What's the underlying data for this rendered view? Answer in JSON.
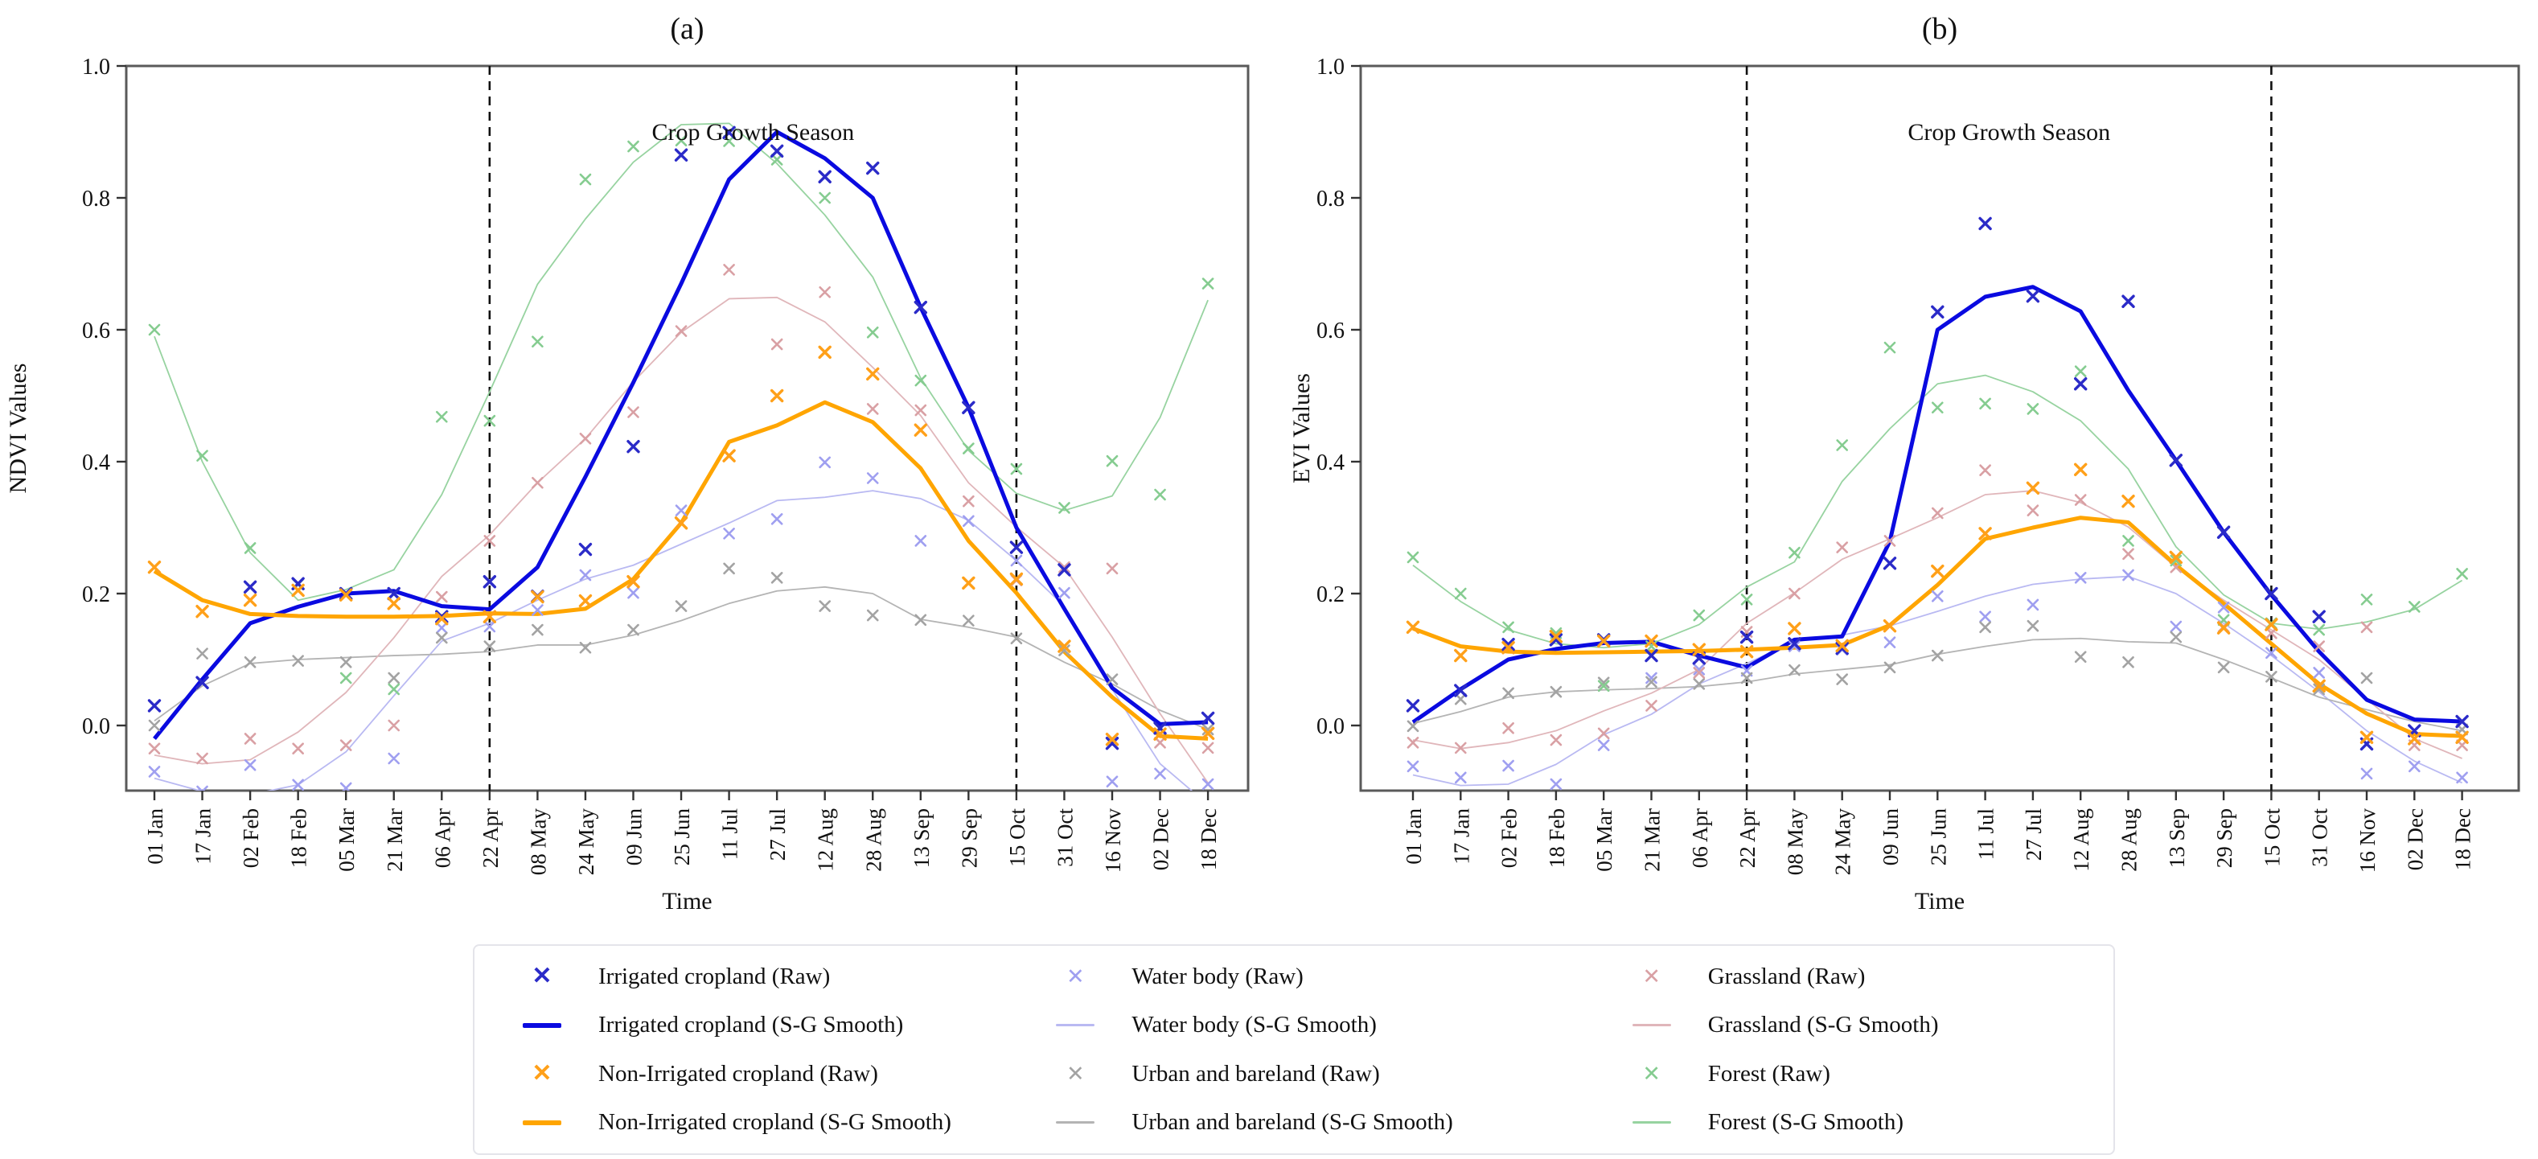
{
  "figure": {
    "background": "#ffffff",
    "season_label": "Crop Growth Season",
    "time_label": "Time"
  },
  "legend": {
    "items": [
      {
        "label": "Irrigated cropland (Raw)",
        "glyph": "x",
        "bold": true,
        "color": "#2b2bc8"
      },
      {
        "label": "Irrigated cropland (S-G Smooth)",
        "glyph": "line",
        "bold": true,
        "color": "#0a0ae0"
      },
      {
        "label": "Non-Irrigated cropland (Raw)",
        "glyph": "x",
        "bold": true,
        "color": "#ffa019"
      },
      {
        "label": "Non-Irrigated cropland (S-G Smooth)",
        "glyph": "line",
        "bold": true,
        "color": "#ffa500"
      },
      {
        "label": "Water body (Raw)",
        "glyph": "x",
        "bold": false,
        "color": "#9f9ff0"
      },
      {
        "label": "Water body (S-G Smooth)",
        "glyph": "line",
        "bold": false,
        "color": "#b9b9f2"
      },
      {
        "label": "Urban and bareland (Raw)",
        "glyph": "x",
        "bold": false,
        "color": "#a3a3a3"
      },
      {
        "label": "Urban and bareland (S-G Smooth)",
        "glyph": "line",
        "bold": false,
        "color": "#b4b4b4"
      },
      {
        "label": "Grassland (Raw)",
        "glyph": "x",
        "bold": false,
        "color": "#d9a0a4"
      },
      {
        "label": "Grassland (S-G Smooth)",
        "glyph": "line",
        "bold": false,
        "color": "#e0b6ba"
      },
      {
        "label": "Forest (Raw)",
        "glyph": "x",
        "bold": false,
        "color": "#85cc90"
      },
      {
        "label": "Forest (S-G Smooth)",
        "glyph": "line",
        "bold": false,
        "color": "#97d3a0"
      }
    ]
  },
  "chart_data": [
    {
      "id": "a",
      "type": "line",
      "title": "(a)",
      "ylabel": "NDVI Values",
      "xlabel": "Time",
      "annotation": "Crop Growth Season",
      "ylim": [
        -0.1,
        1.0
      ],
      "yticks": [
        "0.0",
        "0.2",
        "0.4",
        "0.6",
        "0.8",
        "1.0"
      ],
      "grid": false,
      "season_ticks": [
        "22 Apr",
        "15 Oct"
      ],
      "categories": [
        "01 Jan",
        "17 Jan",
        "02 Feb",
        "18 Feb",
        "05 Mar",
        "21 Mar",
        "06 Apr",
        "22 Apr",
        "08 May",
        "24 May",
        "09 Jun",
        "25 Jun",
        "11 Jul",
        "27 Jul",
        "12 Aug",
        "28 Aug",
        "13 Sep",
        "29 Sep",
        "15 Oct",
        "31 Oct",
        "16 Nov",
        "02 Dec",
        "18 Dec"
      ],
      "series": [
        {
          "name": "Irrigated cropland (Raw)",
          "kind": "raw",
          "emph": true,
          "color": "#2b2bc8",
          "values": [
            0.03,
            0.065,
            0.21,
            0.215,
            0.2,
            0.2,
            0.165,
            0.218,
            0.196,
            0.267,
            0.423,
            0.865,
            0.899,
            0.871,
            0.832,
            0.845,
            0.634,
            0.482,
            0.27,
            0.236,
            -0.027,
            -0.004,
            0.011
          ]
        },
        {
          "name": "Irrigated cropland (S-G Smooth)",
          "kind": "smooth",
          "emph": true,
          "color": "#0a0ae0",
          "values": [
            -0.02,
            0.07,
            0.155,
            0.18,
            0.2,
            0.204,
            0.181,
            0.176,
            0.24,
            0.377,
            0.52,
            0.67,
            0.828,
            0.9,
            0.86,
            0.8,
            0.634,
            0.482,
            0.3,
            0.177,
            0.057,
            0.002,
            0.005
          ]
        },
        {
          "name": "Non-Irrigated cropland (Raw)",
          "kind": "raw",
          "emph": true,
          "color": "#ffa019",
          "values": [
            0.24,
            0.173,
            0.19,
            0.205,
            0.198,
            0.185,
            0.162,
            0.165,
            0.195,
            0.189,
            0.218,
            0.307,
            0.409,
            0.5,
            0.566,
            0.533,
            0.448,
            0.216,
            0.222,
            0.12,
            -0.021,
            -0.013,
            -0.012
          ]
        },
        {
          "name": "Non-Irrigated cropland (S-G Smooth)",
          "kind": "smooth",
          "emph": true,
          "color": "#ffa500",
          "values": [
            0.234,
            0.19,
            0.169,
            0.166,
            0.165,
            0.165,
            0.166,
            0.17,
            0.169,
            0.177,
            0.222,
            0.307,
            0.43,
            0.455,
            0.49,
            0.46,
            0.39,
            0.28,
            0.201,
            0.112,
            0.043,
            -0.016,
            -0.02
          ]
        },
        {
          "name": "Water body (Raw)",
          "kind": "raw",
          "emph": false,
          "color": "#9f9ff0",
          "values": [
            -0.07,
            -0.1,
            -0.06,
            -0.09,
            -0.095,
            -0.05,
            0.148,
            0.15,
            0.175,
            0.228,
            0.201,
            0.326,
            0.291,
            0.313,
            0.399,
            0.375,
            0.28,
            0.31,
            0.25,
            0.201,
            -0.085,
            -0.073,
            -0.089
          ]
        },
        {
          "name": "Water body (S-G Smooth)",
          "kind": "smooth",
          "emph": false,
          "color": "#b9b9f2",
          "values": [
            -0.08,
            -0.1,
            -0.105,
            -0.09,
            -0.04,
            0.045,
            0.128,
            0.155,
            0.19,
            0.222,
            0.243,
            0.275,
            0.307,
            0.341,
            0.346,
            0.356,
            0.344,
            0.311,
            0.25,
            0.181,
            0.055,
            -0.058,
            -0.12
          ]
        },
        {
          "name": "Urban and bareland (Raw)",
          "kind": "raw",
          "emph": false,
          "color": "#a3a3a3",
          "values": [
            0.0,
            0.109,
            0.096,
            0.098,
            0.096,
            0.072,
            0.133,
            0.12,
            0.145,
            0.118,
            0.145,
            0.181,
            0.238,
            0.224,
            0.181,
            0.167,
            0.16,
            0.159,
            0.132,
            0.114,
            0.07,
            -0.005,
            -0.006
          ]
        },
        {
          "name": "Urban and bareland (S-G Smooth)",
          "kind": "smooth",
          "emph": false,
          "color": "#b4b4b4",
          "values": [
            0.007,
            0.06,
            0.094,
            0.1,
            0.103,
            0.106,
            0.108,
            0.112,
            0.122,
            0.122,
            0.137,
            0.159,
            0.185,
            0.204,
            0.21,
            0.2,
            0.161,
            0.149,
            0.134,
            0.096,
            0.063,
            0.023,
            -0.006
          ]
        },
        {
          "name": "Grassland (Raw)",
          "kind": "raw",
          "emph": false,
          "color": "#d9a0a4",
          "values": [
            -0.035,
            -0.05,
            -0.02,
            -0.035,
            -0.03,
            0.0,
            0.195,
            0.28,
            0.368,
            0.435,
            0.475,
            0.598,
            0.691,
            0.578,
            0.657,
            0.48,
            0.478,
            0.34,
            0.22,
            0.24,
            0.238,
            -0.026,
            -0.034
          ]
        },
        {
          "name": "Grassland (S-G Smooth)",
          "kind": "smooth",
          "emph": false,
          "color": "#e0b6ba",
          "values": [
            -0.045,
            -0.058,
            -0.052,
            -0.01,
            0.05,
            0.133,
            0.226,
            0.289,
            0.368,
            0.435,
            0.521,
            0.596,
            0.647,
            0.649,
            0.612,
            0.543,
            0.47,
            0.368,
            0.301,
            0.24,
            0.134,
            0.018,
            -0.087
          ]
        },
        {
          "name": "Forest (Raw)",
          "kind": "raw",
          "emph": false,
          "color": "#85cc90",
          "values": [
            0.6,
            0.409,
            0.269,
            0.214,
            0.072,
            0.055,
            0.468,
            0.462,
            0.582,
            0.828,
            0.878,
            0.887,
            0.886,
            0.858,
            0.8,
            0.596,
            0.523,
            0.42,
            0.389,
            0.33,
            0.401,
            0.35,
            0.67
          ]
        },
        {
          "name": "Forest (S-G Smooth)",
          "kind": "smooth",
          "emph": false,
          "color": "#97d3a0",
          "values": [
            0.59,
            0.4,
            0.262,
            0.19,
            0.206,
            0.236,
            0.35,
            0.506,
            0.669,
            0.768,
            0.854,
            0.911,
            0.913,
            0.852,
            0.774,
            0.68,
            0.527,
            0.417,
            0.352,
            0.326,
            0.348,
            0.467,
            0.645
          ]
        }
      ]
    },
    {
      "id": "b",
      "type": "line",
      "title": "(b)",
      "ylabel": "EVI Values",
      "xlabel": "Time",
      "annotation": "Crop Growth Season",
      "ylim": [
        -0.1,
        1.0
      ],
      "yticks": [
        "0.0",
        "0.2",
        "0.4",
        "0.6",
        "0.8",
        "1.0"
      ],
      "grid": false,
      "season_ticks": [
        "22 Apr",
        "15 Oct"
      ],
      "categories": [
        "01 Jan",
        "17 Jan",
        "02 Feb",
        "18 Feb",
        "05 Mar",
        "21 Mar",
        "06 Apr",
        "22 Apr",
        "08 May",
        "24 May",
        "09 Jun",
        "25 Jun",
        "11 Jul",
        "27 Jul",
        "12 Aug",
        "28 Aug",
        "13 Sep",
        "29 Sep",
        "15 Oct",
        "31 Oct",
        "16 Nov",
        "02 Dec",
        "18 Dec"
      ],
      "series": [
        {
          "name": "Irrigated cropland (Raw)",
          "kind": "raw",
          "emph": true,
          "color": "#2b2bc8",
          "values": [
            0.03,
            0.053,
            0.123,
            0.13,
            0.13,
            0.106,
            0.102,
            0.134,
            0.124,
            0.117,
            0.246,
            0.627,
            0.761,
            0.651,
            0.518,
            0.643,
            0.402,
            0.293,
            0.2,
            0.165,
            -0.028,
            -0.008,
            0.006
          ]
        },
        {
          "name": "Irrigated cropland (S-G Smooth)",
          "kind": "smooth",
          "emph": true,
          "color": "#0a0ae0",
          "values": [
            0.005,
            0.055,
            0.1,
            0.116,
            0.125,
            0.127,
            0.106,
            0.088,
            0.13,
            0.135,
            0.279,
            0.6,
            0.65,
            0.665,
            0.628,
            0.508,
            0.402,
            0.293,
            0.198,
            0.112,
            0.039,
            0.009,
            0.006
          ]
        },
        {
          "name": "Non-Irrigated cropland (Raw)",
          "kind": "raw",
          "emph": true,
          "color": "#ffa019",
          "values": [
            0.149,
            0.106,
            0.118,
            0.135,
            0.128,
            0.128,
            0.115,
            0.112,
            0.147,
            0.121,
            0.151,
            0.234,
            0.291,
            0.36,
            0.388,
            0.34,
            0.255,
            0.148,
            0.153,
            0.06,
            -0.018,
            -0.02,
            -0.018
          ]
        },
        {
          "name": "Non-Irrigated cropland (S-G Smooth)",
          "kind": "smooth",
          "emph": true,
          "color": "#ffa500",
          "values": [
            0.147,
            0.12,
            0.112,
            0.11,
            0.111,
            0.112,
            0.113,
            0.115,
            0.118,
            0.122,
            0.152,
            0.213,
            0.283,
            0.3,
            0.315,
            0.308,
            0.243,
            0.185,
            0.124,
            0.063,
            0.018,
            -0.013,
            -0.016
          ]
        },
        {
          "name": "Water body (Raw)",
          "kind": "raw",
          "emph": false,
          "color": "#9f9ff0",
          "values": [
            -0.062,
            -0.079,
            -0.061,
            -0.089,
            -0.03,
            0.072,
            0.085,
            0.083,
            0.12,
            0.115,
            0.126,
            0.196,
            0.165,
            0.183,
            0.224,
            0.228,
            0.15,
            0.179,
            0.11,
            0.08,
            -0.073,
            -0.062,
            -0.079
          ]
        },
        {
          "name": "Water body (S-G Smooth)",
          "kind": "smooth",
          "emph": false,
          "color": "#b9b9f2",
          "values": [
            -0.075,
            -0.091,
            -0.089,
            -0.059,
            -0.014,
            0.017,
            0.063,
            0.094,
            0.127,
            0.137,
            0.151,
            0.173,
            0.196,
            0.214,
            0.222,
            0.226,
            0.2,
            0.155,
            0.106,
            0.051,
            -0.008,
            -0.054,
            -0.087
          ]
        },
        {
          "name": "Urban and bareland (Raw)",
          "kind": "raw",
          "emph": false,
          "color": "#a3a3a3",
          "values": [
            -0.001,
            0.04,
            0.049,
            0.051,
            0.065,
            0.066,
            0.063,
            0.072,
            0.084,
            0.07,
            0.088,
            0.106,
            0.149,
            0.151,
            0.104,
            0.096,
            0.134,
            0.088,
            0.074,
            0.055,
            0.072,
            -0.008,
            -0.006
          ]
        },
        {
          "name": "Urban and bareland (S-G Smooth)",
          "kind": "smooth",
          "emph": false,
          "color": "#b4b4b4",
          "values": [
            0.003,
            0.021,
            0.043,
            0.051,
            0.054,
            0.056,
            0.059,
            0.066,
            0.078,
            0.085,
            0.092,
            0.108,
            0.12,
            0.13,
            0.132,
            0.127,
            0.125,
            0.1,
            0.072,
            0.043,
            0.024,
            0.006,
            -0.008
          ]
        },
        {
          "name": "Grassland (Raw)",
          "kind": "raw",
          "emph": false,
          "color": "#d9a0a4",
          "values": [
            -0.026,
            -0.034,
            -0.004,
            -0.022,
            -0.012,
            0.03,
            0.08,
            0.142,
            0.2,
            0.27,
            0.28,
            0.322,
            0.387,
            0.326,
            0.342,
            0.26,
            0.24,
            0.15,
            0.14,
            0.12,
            0.149,
            -0.03,
            -0.03
          ]
        },
        {
          "name": "Grassland (S-G Smooth)",
          "kind": "smooth",
          "emph": false,
          "color": "#e0b6ba",
          "values": [
            -0.022,
            -0.035,
            -0.026,
            -0.008,
            0.022,
            0.049,
            0.085,
            0.155,
            0.201,
            0.252,
            0.283,
            0.315,
            0.35,
            0.356,
            0.338,
            0.301,
            0.24,
            0.19,
            0.145,
            0.1,
            0.04,
            -0.02,
            -0.05
          ]
        },
        {
          "name": "Forest (Raw)",
          "kind": "raw",
          "emph": false,
          "color": "#85cc90",
          "values": [
            0.255,
            0.2,
            0.149,
            0.14,
            0.06,
            0.12,
            0.167,
            0.191,
            0.262,
            0.425,
            0.573,
            0.482,
            0.488,
            0.48,
            0.537,
            0.28,
            0.25,
            0.16,
            0.155,
            0.145,
            0.191,
            0.18,
            0.23
          ]
        },
        {
          "name": "Forest (S-G Smooth)",
          "kind": "smooth",
          "emph": false,
          "color": "#97d3a0",
          "values": [
            0.243,
            0.188,
            0.145,
            0.124,
            0.118,
            0.124,
            0.153,
            0.21,
            0.248,
            0.37,
            0.45,
            0.518,
            0.531,
            0.506,
            0.462,
            0.389,
            0.271,
            0.198,
            0.155,
            0.146,
            0.157,
            0.176,
            0.22
          ]
        }
      ]
    }
  ]
}
